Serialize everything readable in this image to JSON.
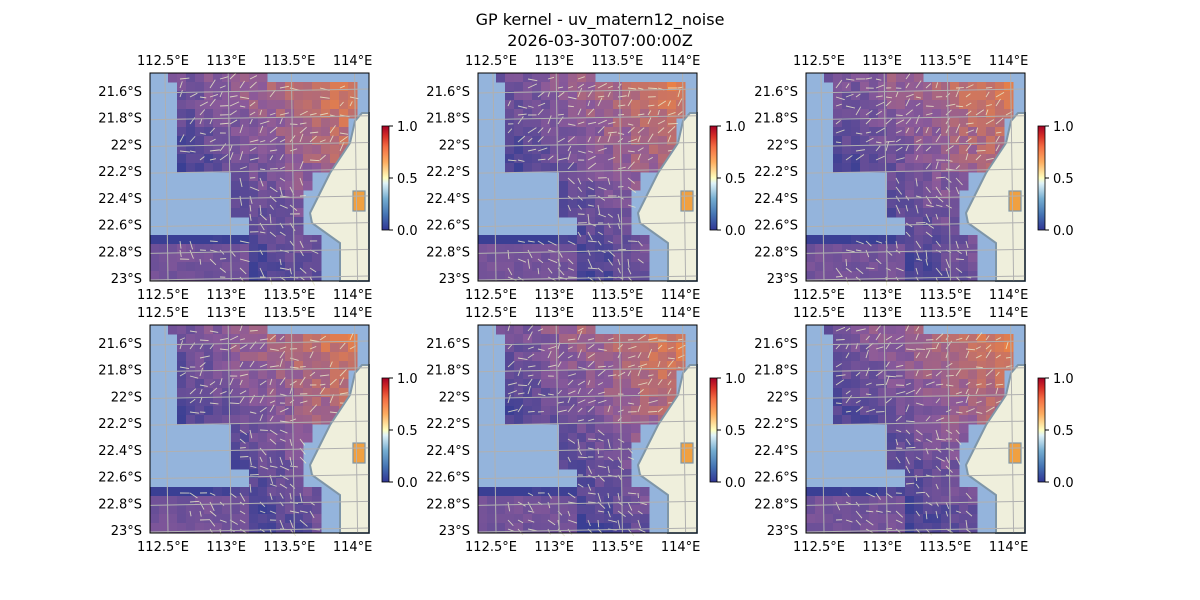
{
  "figure": {
    "title_line1": "GP kernel - uv_matern12_noise",
    "title_line2": "2026-03-30T07:00:00Z"
  },
  "axes": {
    "lon_ticks": [
      "112.5°E",
      "113°E",
      "113.5°E",
      "114°E"
    ],
    "lat_ticks": [
      "21.6°S",
      "21.8°S",
      "22°S",
      "22.2°S",
      "22.4°S",
      "22.6°S",
      "22.8°S",
      "23°S"
    ],
    "lon_values": [
      112.5,
      113.0,
      113.5,
      114.0
    ],
    "lat_values": [
      -21.6,
      -21.8,
      -22.0,
      -22.2,
      -22.4,
      -22.6,
      -22.8,
      -23.0
    ]
  },
  "colorbar": {
    "ticks": [
      "0.0",
      "0.5",
      "1.0"
    ],
    "tick_values": [
      0.0,
      0.5,
      1.0
    ],
    "colormaps": [
      "RdYlBu_r",
      "RdYlBu_r",
      "RdYlBu_r",
      "RdYlBu_r",
      "RdYlBu_r",
      "RdYlBu_r"
    ]
  },
  "colors": {
    "ocean": "#94b4dc",
    "land": "#efefdc",
    "coast": "#7f96a8",
    "field_low": "#3a3f94",
    "field_mid": "#8b5a9a",
    "field_high": "#e88048",
    "vectors": "#e8e8c8",
    "grid": "#b0b0b0"
  },
  "panels": [
    {
      "id": "p1"
    },
    {
      "id": "p2"
    },
    {
      "id": "p3"
    },
    {
      "id": "p4"
    },
    {
      "id": "p5"
    },
    {
      "id": "p6"
    }
  ]
}
